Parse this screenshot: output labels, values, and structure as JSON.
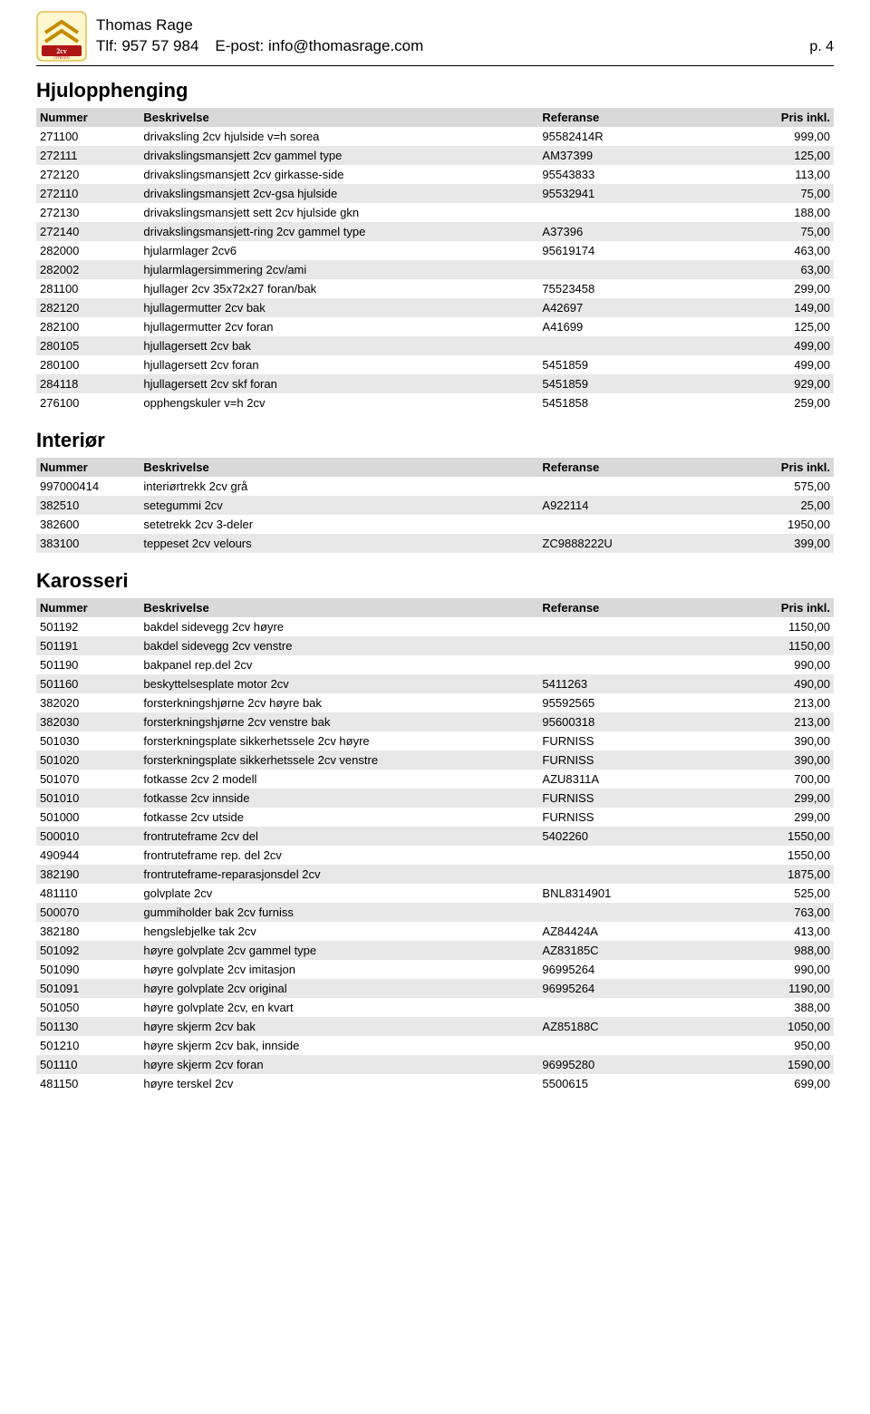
{
  "header": {
    "name": "Thomas Rage",
    "tlf_label": "Tlf: 957 57 984",
    "epost_label": "E-post: info@thomasrage.com",
    "page_label": "p. 4"
  },
  "columns": {
    "nummer": "Nummer",
    "beskrivelse": "Beskrivelse",
    "referanse": "Referanse",
    "pris": "Pris inkl."
  },
  "sections": [
    {
      "title": "Hjulopphenging",
      "rows": [
        {
          "n": "271100",
          "d": "drivaksling 2cv hjulside v=h sorea",
          "r": "95582414R",
          "p": "999,00"
        },
        {
          "n": "272111",
          "d": "drivakslingsmansjett 2cv gammel type",
          "r": "AM37399",
          "p": "125,00"
        },
        {
          "n": "272120",
          "d": "drivakslingsmansjett 2cv girkasse-side",
          "r": "95543833",
          "p": "113,00"
        },
        {
          "n": "272110",
          "d": "drivakslingsmansjett 2cv-gsa hjulside",
          "r": "95532941",
          "p": "75,00"
        },
        {
          "n": "272130",
          "d": "drivakslingsmansjett sett 2cv hjulside gkn",
          "r": "",
          "p": "188,00"
        },
        {
          "n": "272140",
          "d": "drivakslingsmansjett-ring 2cv gammel type",
          "r": "A37396",
          "p": "75,00"
        },
        {
          "n": "282000",
          "d": "hjularmlager 2cv6",
          "r": "95619174",
          "p": "463,00"
        },
        {
          "n": "282002",
          "d": "hjularmlagersimmering 2cv/ami",
          "r": "",
          "p": "63,00"
        },
        {
          "n": "281100",
          "d": "hjullager 2cv 35x72x27 foran/bak",
          "r": "75523458",
          "p": "299,00"
        },
        {
          "n": "282120",
          "d": "hjullagermutter 2cv bak",
          "r": "A42697",
          "p": "149,00"
        },
        {
          "n": "282100",
          "d": "hjullagermutter 2cv foran",
          "r": "A41699",
          "p": "125,00"
        },
        {
          "n": "280105",
          "d": "hjullagersett 2cv bak",
          "r": "",
          "p": "499,00"
        },
        {
          "n": "280100",
          "d": "hjullagersett 2cv foran",
          "r": "5451859",
          "p": "499,00"
        },
        {
          "n": "284118",
          "d": "hjullagersett 2cv skf foran",
          "r": "5451859",
          "p": "929,00"
        },
        {
          "n": "276100",
          "d": "opphengskuler v=h 2cv",
          "r": "5451858",
          "p": "259,00"
        }
      ]
    },
    {
      "title": "Interiør",
      "rows": [
        {
          "n": "997000414",
          "d": "interiørtrekk 2cv grå",
          "r": "",
          "p": "575,00"
        },
        {
          "n": "382510",
          "d": "setegummi 2cv",
          "r": "A922114",
          "p": "25,00"
        },
        {
          "n": "382600",
          "d": "setetrekk 2cv 3-deler",
          "r": "",
          "p": "1950,00"
        },
        {
          "n": "383100",
          "d": "teppeset 2cv velours",
          "r": "ZC9888222U",
          "p": "399,00"
        }
      ]
    },
    {
      "title": "Karosseri",
      "rows": [
        {
          "n": "501192",
          "d": "bakdel sidevegg 2cv høyre",
          "r": "",
          "p": "1150,00"
        },
        {
          "n": "501191",
          "d": "bakdel sidevegg 2cv venstre",
          "r": "",
          "p": "1150,00"
        },
        {
          "n": "501190",
          "d": "bakpanel rep.del 2cv",
          "r": "",
          "p": "990,00"
        },
        {
          "n": "501160",
          "d": "beskyttelsesplate motor 2cv",
          "r": "5411263",
          "p": "490,00"
        },
        {
          "n": "382020",
          "d": "forsterkningshjørne 2cv høyre bak",
          "r": "95592565",
          "p": "213,00"
        },
        {
          "n": "382030",
          "d": "forsterkningshjørne 2cv venstre bak",
          "r": "95600318",
          "p": "213,00"
        },
        {
          "n": "501030",
          "d": "forsterkningsplate sikkerhetssele 2cv høyre",
          "r": "FURNISS",
          "p": "390,00"
        },
        {
          "n": "501020",
          "d": "forsterkningsplate sikkerhetssele 2cv venstre",
          "r": "FURNISS",
          "p": "390,00"
        },
        {
          "n": "501070",
          "d": "fotkasse 2cv 2 modell",
          "r": "AZU8311A",
          "p": "700,00"
        },
        {
          "n": "501010",
          "d": "fotkasse 2cv innside",
          "r": "FURNISS",
          "p": "299,00"
        },
        {
          "n": "501000",
          "d": "fotkasse 2cv utside",
          "r": "FURNISS",
          "p": "299,00"
        },
        {
          "n": "500010",
          "d": "frontruteframe 2cv del",
          "r": "5402260",
          "p": "1550,00"
        },
        {
          "n": "490944",
          "d": "frontruteframe rep. del 2cv",
          "r": "",
          "p": "1550,00"
        },
        {
          "n": "382190",
          "d": "frontruteframe-reparasjonsdel 2cv",
          "r": "",
          "p": "1875,00"
        },
        {
          "n": "481110",
          "d": "golvplate 2cv",
          "r": "BNL8314901",
          "p": "525,00"
        },
        {
          "n": "500070",
          "d": "gummiholder bak 2cv furniss",
          "r": "",
          "p": "763,00"
        },
        {
          "n": "382180",
          "d": "hengslebjelke tak 2cv",
          "r": "AZ84424A",
          "p": "413,00"
        },
        {
          "n": "501092",
          "d": "høyre golvplate 2cv gammel type",
          "r": "AZ83185C",
          "p": "988,00"
        },
        {
          "n": "501090",
          "d": "høyre golvplate 2cv imitasjon",
          "r": "96995264",
          "p": "990,00"
        },
        {
          "n": "501091",
          "d": "høyre golvplate 2cv original",
          "r": "96995264",
          "p": "1190,00"
        },
        {
          "n": "501050",
          "d": "høyre golvplate 2cv, en kvart",
          "r": "",
          "p": "388,00"
        },
        {
          "n": "501130",
          "d": "høyre skjerm 2cv bak",
          "r": "AZ85188C",
          "p": "1050,00"
        },
        {
          "n": "501210",
          "d": "høyre skjerm 2cv bak, innside",
          "r": "",
          "p": "950,00"
        },
        {
          "n": "501110",
          "d": "høyre skjerm 2cv foran",
          "r": "96995280",
          "p": "1590,00"
        },
        {
          "n": "481150",
          "d": "høyre terskel 2cv",
          "r": "5500615",
          "p": "699,00"
        }
      ]
    }
  ],
  "style": {
    "header_bg": "#d9d9d9",
    "stripe_bg": "#e8e8e8",
    "font_size_body": 13,
    "font_size_title": 22
  }
}
